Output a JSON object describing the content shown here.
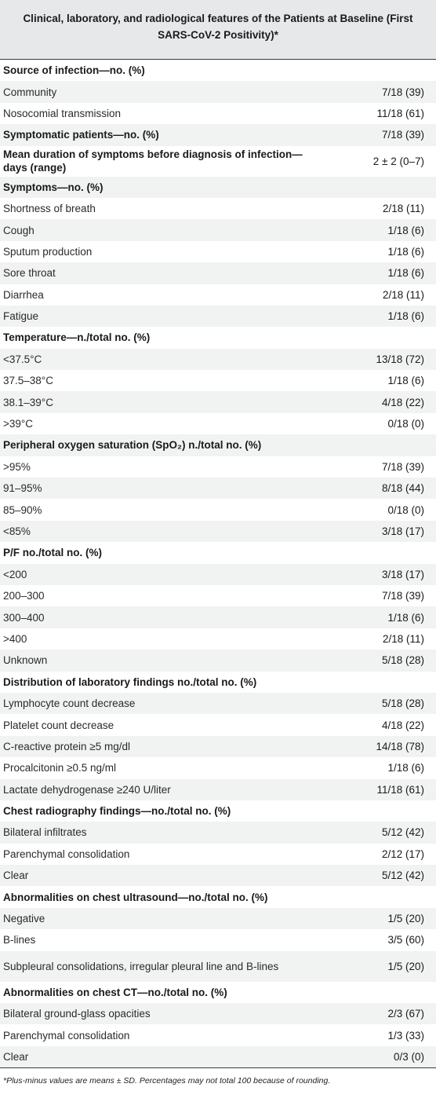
{
  "title": "Clinical, laboratory, and radiological features of the Patients at Baseline (First SARS-CoV-2 Positivity)*",
  "rows": [
    {
      "label": "Source of infection—no. (%)",
      "value": "",
      "header": true
    },
    {
      "label": "Community",
      "value": "7/18 (39)"
    },
    {
      "label": "Nosocomial transmission",
      "value": "11/18 (61)"
    },
    {
      "label": "Symptomatic patients—no. (%)",
      "value": "7/18 (39)",
      "header": true
    },
    {
      "label": "Mean duration of symptoms before diagnosis of infection—days (range)",
      "value": "2 ± 2 (0–7)",
      "header": true,
      "tall": true
    },
    {
      "label": "Symptoms—no. (%)",
      "value": "",
      "header": true
    },
    {
      "label": "Shortness of breath",
      "value": "2/18 (11)"
    },
    {
      "label": "Cough",
      "value": "1/18 (6)"
    },
    {
      "label": "Sputum production",
      "value": "1/18 (6)"
    },
    {
      "label": "Sore throat",
      "value": "1/18 (6)"
    },
    {
      "label": "Diarrhea",
      "value": "2/18 (11)"
    },
    {
      "label": "Fatigue",
      "value": "1/18 (6)"
    },
    {
      "label": "Temperature—n./total no. (%)",
      "value": "",
      "header": true
    },
    {
      "label": "<37.5°C",
      "value": "13/18 (72)"
    },
    {
      "label": "37.5–38°C",
      "value": "1/18 (6)"
    },
    {
      "label": "38.1–39°C",
      "value": "4/18 (22)"
    },
    {
      "label": ">39°C",
      "value": "0/18 (0)"
    },
    {
      "label": "Peripheral oxygen saturation (SpO₂) n./total no. (%)",
      "value": "",
      "header": true
    },
    {
      "label": ">95%",
      "value": "7/18 (39)"
    },
    {
      "label": "91–95%",
      "value": "8/18 (44)"
    },
    {
      "label": "85–90%",
      "value": "0/18 (0)"
    },
    {
      "label": "<85%",
      "value": "3/18 (17)"
    },
    {
      "label": "P/F no./total no. (%)",
      "value": "",
      "header": true
    },
    {
      "label": "<200",
      "value": "3/18 (17)"
    },
    {
      "label": "200–300",
      "value": "7/18 (39)"
    },
    {
      "label": "300–400",
      "value": "1/18 (6)"
    },
    {
      "label": ">400",
      "value": "2/18 (11)"
    },
    {
      "label": "Unknown",
      "value": "5/18 (28)"
    },
    {
      "label": "Distribution of laboratory findings no./total no. (%)",
      "value": "",
      "header": true
    },
    {
      "label": "Lymphocyte count decrease",
      "value": "5/18 (28)"
    },
    {
      "label": "Platelet count decrease",
      "value": "4/18 (22)"
    },
    {
      "label": "C-reactive protein ≥5 mg/dl",
      "value": "14/18 (78)"
    },
    {
      "label": "Procalcitonin ≥0.5 ng/ml",
      "value": "1/18 (6)"
    },
    {
      "label": "Lactate dehydrogenase ≥240 U/liter",
      "value": "11/18 (61)"
    },
    {
      "label": "Chest radiography findings—no./total no. (%)",
      "value": "",
      "header": true
    },
    {
      "label": "Bilateral infiltrates",
      "value": "5/12 (42)"
    },
    {
      "label": "Parenchymal consolidation",
      "value": "2/12 (17)"
    },
    {
      "label": "Clear",
      "value": "5/12 (42)"
    },
    {
      "label": "Abnormalities on chest ultrasound—no./total no. (%)",
      "value": "",
      "header": true
    },
    {
      "label": "Negative",
      "value": "1/5 (20)"
    },
    {
      "label": "B-lines",
      "value": "3/5 (60)"
    },
    {
      "label": "Subpleural consolidations, irregular pleural line and B-lines",
      "value": "1/5 (20)",
      "tall": true
    },
    {
      "label": "Abnormalities on chest CT—no./total no. (%)",
      "value": "",
      "header": true
    },
    {
      "label": "Bilateral ground-glass opacities",
      "value": "2/3 (67)"
    },
    {
      "label": "Parenchymal consolidation",
      "value": "1/3 (33)"
    },
    {
      "label": "Clear",
      "value": "0/3 (0)"
    }
  ],
  "footnote": "*Plus-minus values are means ± SD. Percentages may not total 100 because of rounding."
}
